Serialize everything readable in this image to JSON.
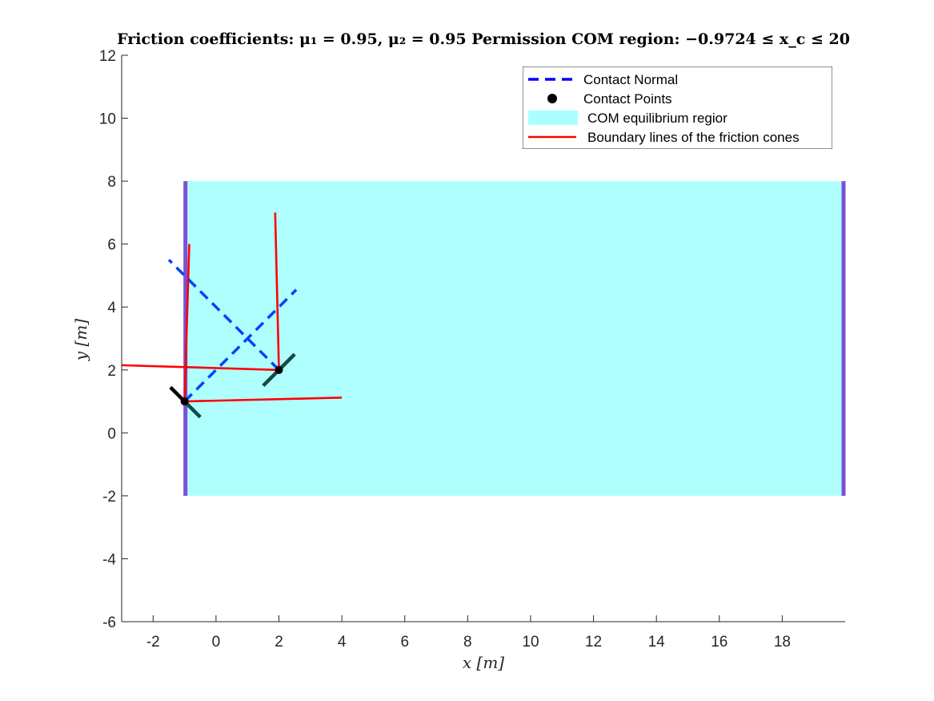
{
  "chart_data": {
    "type": "line",
    "title": "Friction coefficients: μ₁ = 0.95, μ₂ = 0.95  Permission COM region: −0.9724 ≤ x_c ≤ 20",
    "xlabel": "x [m]",
    "ylabel": "y [m]",
    "xlim": [
      -3,
      20
    ],
    "ylim": [
      -6,
      12
    ],
    "xticks": [
      -2,
      0,
      2,
      4,
      6,
      8,
      10,
      12,
      14,
      16,
      18
    ],
    "yticks": [
      -6,
      -4,
      -2,
      0,
      2,
      4,
      6,
      8,
      10,
      12
    ],
    "xtick_labels": [
      "-2",
      "0",
      "2",
      "4",
      "6",
      "8",
      "10",
      "12",
      "14",
      "16",
      "18"
    ],
    "ytick_labels": [
      "-6",
      "-4",
      "-2",
      "0",
      "2",
      "4",
      "6",
      "8",
      "10",
      "12"
    ],
    "grid": false,
    "legend_position": "top-right",
    "legend": [
      {
        "label": "Contact Normal",
        "color": "#0000ff",
        "style": "dashed"
      },
      {
        "label": "Contact Points",
        "color": "#000000",
        "style": "marker"
      },
      {
        "label": "COM equilibrium regior",
        "color": "#aaffff",
        "style": "patch"
      },
      {
        "label": "Boundary lines of the friction cones",
        "color": "#ff0000",
        "style": "solid"
      }
    ],
    "com_region": {
      "x": [
        -0.9724,
        20
      ],
      "y": [
        -2,
        8
      ],
      "fill": "#b0ffff",
      "edge_color": "#7b4fd6"
    },
    "contact_points": [
      {
        "x": -1,
        "y": 1
      },
      {
        "x": 2,
        "y": 2
      }
    ],
    "contact_normals": [
      {
        "x": [
          -1,
          2.55
        ],
        "y": [
          1,
          4.55
        ],
        "color": "#0044ff"
      },
      {
        "x": 2,
        "y": 2,
        "x2": -1.5,
        "y2": 5.5,
        "color": "#0044ff"
      }
    ],
    "friction_cone_boundaries": [
      {
        "x": [
          -1,
          4
        ],
        "y": [
          1,
          1.12
        ],
        "color": "#ff0000"
      },
      {
        "x": [
          -1,
          -0.85
        ],
        "y": [
          1,
          6
        ],
        "color": "#ff0000"
      },
      {
        "x": [
          2,
          -3
        ],
        "y": [
          2,
          2.15
        ],
        "color": "#ff0000"
      },
      {
        "x": [
          2,
          1.88
        ],
        "y": [
          2,
          7
        ],
        "color": "#ff0000"
      }
    ],
    "contact_surfaces": [
      {
        "x": [
          -1.45,
          -1.0
        ],
        "y": [
          1.45,
          1.0
        ],
        "color": "#000000"
      },
      {
        "x": [
          -1.0,
          -0.5
        ],
        "y": [
          1.0,
          0.5
        ],
        "color": "#144a44"
      },
      {
        "x": [
          1.5,
          2.5
        ],
        "y": [
          1.5,
          2.5
        ],
        "color": "#144a44"
      }
    ]
  }
}
